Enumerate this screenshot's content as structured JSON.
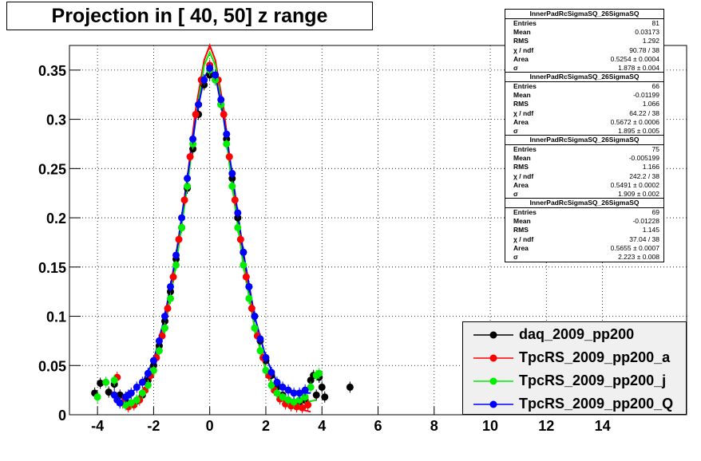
{
  "chart_data": {
    "type": "scatter",
    "title": "Projection in [  40,  50] z range",
    "xlabel": "",
    "ylabel": "",
    "xlim": [
      -5,
      17
    ],
    "ylim": [
      0,
      0.375
    ],
    "x_ticks": [
      -4,
      -2,
      0,
      2,
      4,
      6,
      8,
      10,
      12,
      14
    ],
    "y_ticks": [
      0,
      0.05,
      0.1,
      0.15,
      0.2,
      0.25,
      0.3,
      0.35
    ],
    "y_tick_labels": [
      "0",
      "0.05",
      "0.1",
      "0.15",
      "0.2",
      "0.25",
      "0.3",
      "0.35"
    ],
    "grid": true,
    "legend_position": "bottom-right",
    "series": [
      {
        "name": "daq_2009_pp200",
        "color": "#000000",
        "points": [
          [
            -4.1,
            0.022
          ],
          [
            -3.9,
            0.032
          ],
          [
            -3.6,
            0.023
          ],
          [
            -3.4,
            0.031
          ],
          [
            -3.2,
            0.02
          ],
          [
            -3.0,
            0.014
          ],
          [
            -2.8,
            0.012
          ],
          [
            -2.6,
            0.014
          ],
          [
            -2.4,
            0.02
          ],
          [
            -2.2,
            0.035
          ],
          [
            -2.0,
            0.05
          ],
          [
            -1.8,
            0.07
          ],
          [
            -1.6,
            0.095
          ],
          [
            -1.4,
            0.125
          ],
          [
            -1.2,
            0.158
          ],
          [
            -1.0,
            0.19
          ],
          [
            -0.8,
            0.23
          ],
          [
            -0.6,
            0.27
          ],
          [
            -0.4,
            0.305
          ],
          [
            -0.2,
            0.335
          ],
          [
            0.0,
            0.345
          ],
          [
            0.2,
            0.34
          ],
          [
            0.4,
            0.315
          ],
          [
            0.6,
            0.28
          ],
          [
            0.8,
            0.24
          ],
          [
            1.0,
            0.2
          ],
          [
            1.2,
            0.165
          ],
          [
            1.4,
            0.13
          ],
          [
            1.6,
            0.1
          ],
          [
            1.8,
            0.075
          ],
          [
            2.0,
            0.055
          ],
          [
            2.2,
            0.04
          ],
          [
            2.4,
            0.028
          ],
          [
            2.6,
            0.02
          ],
          [
            2.8,
            0.015
          ],
          [
            3.0,
            0.012
          ],
          [
            3.2,
            0.012
          ],
          [
            3.4,
            0.015
          ],
          [
            3.6,
            0.035
          ],
          [
            3.7,
            0.04
          ],
          [
            3.8,
            0.02
          ],
          [
            3.9,
            0.038
          ],
          [
            4.0,
            0.028
          ],
          [
            4.1,
            0.018
          ],
          [
            5.0,
            0.028
          ]
        ]
      },
      {
        "name": "TpcRS_2009_pp200_a",
        "color": "#ff0000",
        "points": [
          [
            -3.3,
            0.038
          ],
          [
            -3.1,
            0.012
          ],
          [
            -2.9,
            0.008
          ],
          [
            -2.7,
            0.01
          ],
          [
            -2.5,
            0.015
          ],
          [
            -2.3,
            0.025
          ],
          [
            -2.1,
            0.04
          ],
          [
            -1.9,
            0.058
          ],
          [
            -1.7,
            0.08
          ],
          [
            -1.5,
            0.108
          ],
          [
            -1.3,
            0.14
          ],
          [
            -1.1,
            0.178
          ],
          [
            -0.9,
            0.218
          ],
          [
            -0.7,
            0.262
          ],
          [
            -0.5,
            0.305
          ],
          [
            -0.3,
            0.34
          ],
          [
            0.0,
            0.355
          ],
          [
            0.3,
            0.34
          ],
          [
            0.5,
            0.305
          ],
          [
            0.7,
            0.262
          ],
          [
            0.9,
            0.218
          ],
          [
            1.1,
            0.178
          ],
          [
            1.3,
            0.14
          ],
          [
            1.5,
            0.108
          ],
          [
            1.7,
            0.08
          ],
          [
            1.9,
            0.058
          ],
          [
            2.1,
            0.04
          ],
          [
            2.3,
            0.025
          ],
          [
            2.5,
            0.016
          ],
          [
            2.7,
            0.011
          ],
          [
            2.9,
            0.009
          ],
          [
            3.1,
            0.008
          ],
          [
            3.3,
            0.007
          ],
          [
            3.5,
            0.01
          ]
        ],
        "curve": [
          [
            -3.3,
            0.02
          ],
          [
            -2.8,
            0.01
          ],
          [
            -2.4,
            0.02
          ],
          [
            -2.0,
            0.045
          ],
          [
            -1.6,
            0.09
          ],
          [
            -1.2,
            0.16
          ],
          [
            -0.8,
            0.24
          ],
          [
            -0.5,
            0.31
          ],
          [
            -0.2,
            0.36
          ],
          [
            0.0,
            0.375
          ],
          [
            0.2,
            0.36
          ],
          [
            0.5,
            0.31
          ],
          [
            0.8,
            0.24
          ],
          [
            1.2,
            0.16
          ],
          [
            1.6,
            0.09
          ],
          [
            2.0,
            0.045
          ],
          [
            2.4,
            0.02
          ],
          [
            2.8,
            0.01
          ],
          [
            3.3,
            0.005
          ],
          [
            3.6,
            0.003
          ]
        ]
      },
      {
        "name": "TpcRS_2009_pp200_j",
        "color": "#00ee00",
        "points": [
          [
            -4.0,
            0.018
          ],
          [
            -3.7,
            0.033
          ],
          [
            -3.4,
            0.035
          ],
          [
            -3.2,
            0.012
          ],
          [
            -3.0,
            0.01
          ],
          [
            -2.8,
            0.012
          ],
          [
            -2.6,
            0.015
          ],
          [
            -2.4,
            0.022
          ],
          [
            -2.2,
            0.03
          ],
          [
            -2.0,
            0.045
          ],
          [
            -1.8,
            0.065
          ],
          [
            -1.6,
            0.088
          ],
          [
            -1.4,
            0.118
          ],
          [
            -1.2,
            0.152
          ],
          [
            -1.0,
            0.19
          ],
          [
            -0.8,
            0.232
          ],
          [
            -0.6,
            0.275
          ],
          [
            -0.4,
            0.315
          ],
          [
            -0.2,
            0.34
          ],
          [
            0.0,
            0.35
          ],
          [
            0.2,
            0.34
          ],
          [
            0.4,
            0.315
          ],
          [
            0.6,
            0.275
          ],
          [
            0.8,
            0.232
          ],
          [
            1.0,
            0.19
          ],
          [
            1.2,
            0.152
          ],
          [
            1.4,
            0.118
          ],
          [
            1.6,
            0.088
          ],
          [
            1.8,
            0.065
          ],
          [
            2.0,
            0.045
          ],
          [
            2.2,
            0.03
          ],
          [
            2.4,
            0.022
          ],
          [
            2.6,
            0.018
          ],
          [
            2.8,
            0.015
          ],
          [
            3.0,
            0.013
          ],
          [
            3.2,
            0.015
          ],
          [
            3.4,
            0.018
          ],
          [
            3.6,
            0.028
          ],
          [
            3.8,
            0.04
          ],
          [
            3.9,
            0.042
          ]
        ],
        "curve": [
          [
            -3.3,
            0.012
          ],
          [
            -2.8,
            0.012
          ],
          [
            -2.4,
            0.022
          ],
          [
            -2.0,
            0.045
          ],
          [
            -1.6,
            0.088
          ],
          [
            -1.2,
            0.152
          ],
          [
            -0.8,
            0.232
          ],
          [
            -0.5,
            0.3
          ],
          [
            -0.2,
            0.355
          ],
          [
            0.0,
            0.368
          ],
          [
            0.2,
            0.355
          ],
          [
            0.5,
            0.3
          ],
          [
            0.8,
            0.232
          ],
          [
            1.2,
            0.152
          ],
          [
            1.6,
            0.088
          ],
          [
            2.0,
            0.045
          ],
          [
            2.4,
            0.022
          ],
          [
            2.8,
            0.014
          ],
          [
            3.3,
            0.012
          ],
          [
            3.8,
            0.015
          ]
        ]
      },
      {
        "name": "TpcRS_2009_pp200_Q",
        "color": "#0000ff",
        "points": [
          [
            -3.4,
            0.02
          ],
          [
            -3.3,
            0.015
          ],
          [
            -3.2,
            0.012
          ],
          [
            -3.0,
            0.018
          ],
          [
            -2.9,
            0.02
          ],
          [
            -2.8,
            0.022
          ],
          [
            -2.6,
            0.028
          ],
          [
            -2.4,
            0.033
          ],
          [
            -2.2,
            0.042
          ],
          [
            -2.0,
            0.055
          ],
          [
            -1.8,
            0.075
          ],
          [
            -1.6,
            0.1
          ],
          [
            -1.4,
            0.13
          ],
          [
            -1.2,
            0.162
          ],
          [
            -1.0,
            0.2
          ],
          [
            -0.8,
            0.24
          ],
          [
            -0.6,
            0.28
          ],
          [
            -0.4,
            0.315
          ],
          [
            -0.2,
            0.34
          ],
          [
            0.0,
            0.352
          ],
          [
            0.2,
            0.345
          ],
          [
            0.4,
            0.32
          ],
          [
            0.6,
            0.285
          ],
          [
            0.8,
            0.245
          ],
          [
            1.0,
            0.205
          ],
          [
            1.2,
            0.165
          ],
          [
            1.4,
            0.13
          ],
          [
            1.6,
            0.1
          ],
          [
            1.8,
            0.077
          ],
          [
            2.0,
            0.058
          ],
          [
            2.2,
            0.043
          ],
          [
            2.4,
            0.033
          ],
          [
            2.6,
            0.028
          ],
          [
            2.8,
            0.025
          ],
          [
            3.0,
            0.022
          ],
          [
            3.2,
            0.022
          ],
          [
            3.4,
            0.025
          ]
        ],
        "curve": [
          [
            -3.3,
            0.018
          ],
          [
            -2.8,
            0.022
          ],
          [
            -2.4,
            0.033
          ],
          [
            -2.0,
            0.055
          ],
          [
            -1.6,
            0.1
          ],
          [
            -1.2,
            0.162
          ],
          [
            -0.8,
            0.24
          ],
          [
            -0.5,
            0.3
          ],
          [
            -0.2,
            0.342
          ],
          [
            0.0,
            0.352
          ],
          [
            0.2,
            0.345
          ],
          [
            0.5,
            0.3
          ],
          [
            0.8,
            0.245
          ],
          [
            1.2,
            0.165
          ],
          [
            1.6,
            0.1
          ],
          [
            2.0,
            0.058
          ],
          [
            2.4,
            0.033
          ],
          [
            2.8,
            0.025
          ],
          [
            3.3,
            0.022
          ],
          [
            3.6,
            0.022
          ]
        ]
      }
    ]
  },
  "stats_boxes": [
    {
      "title": "InnerPadRcSigmaSQ_26SigmaSQ",
      "rows": [
        [
          "Entries",
          "81"
        ],
        [
          "Mean",
          "0.03173"
        ],
        [
          "RMS",
          "1.292"
        ],
        [
          "χ  / ndf",
          "90.78 / 38"
        ],
        [
          "Area",
          "0.5254 ± 0.0004"
        ],
        [
          "σ",
          "1.878 ± 0.004"
        ]
      ]
    },
    {
      "title": "InnerPadRcSigmaSQ_26SigmaSQ",
      "rows": [
        [
          "Entries",
          "66"
        ],
        [
          "Mean",
          "-0.01199"
        ],
        [
          "RMS",
          "1.066"
        ],
        [
          "χ  / ndf",
          "64.22 / 38"
        ],
        [
          "Area",
          "0.5672 ± 0.0006"
        ],
        [
          "σ",
          "1.895 ± 0.005"
        ]
      ]
    },
    {
      "title": "InnerPadRcSigmaSQ_26SigmaSQ",
      "rows": [
        [
          "Entries",
          "75"
        ],
        [
          "Mean",
          "-0.005199"
        ],
        [
          "RMS",
          "1.166"
        ],
        [
          "χ  / ndf",
          "242.2 / 38"
        ],
        [
          "Area",
          "0.5491 ± 0.0002"
        ],
        [
          "σ",
          "1.909 ± 0.002"
        ]
      ]
    },
    {
      "title": "InnerPadRcSigmaSQ_26SigmaSQ",
      "rows": [
        [
          "Entries",
          "69"
        ],
        [
          "Mean",
          "-0.01228"
        ],
        [
          "RMS",
          "1.145"
        ],
        [
          "χ  / ndf",
          "37.04 / 38"
        ],
        [
          "Area",
          "0.5655 ± 0.0007"
        ],
        [
          "σ",
          "2.223 ± 0.008"
        ]
      ]
    }
  ]
}
